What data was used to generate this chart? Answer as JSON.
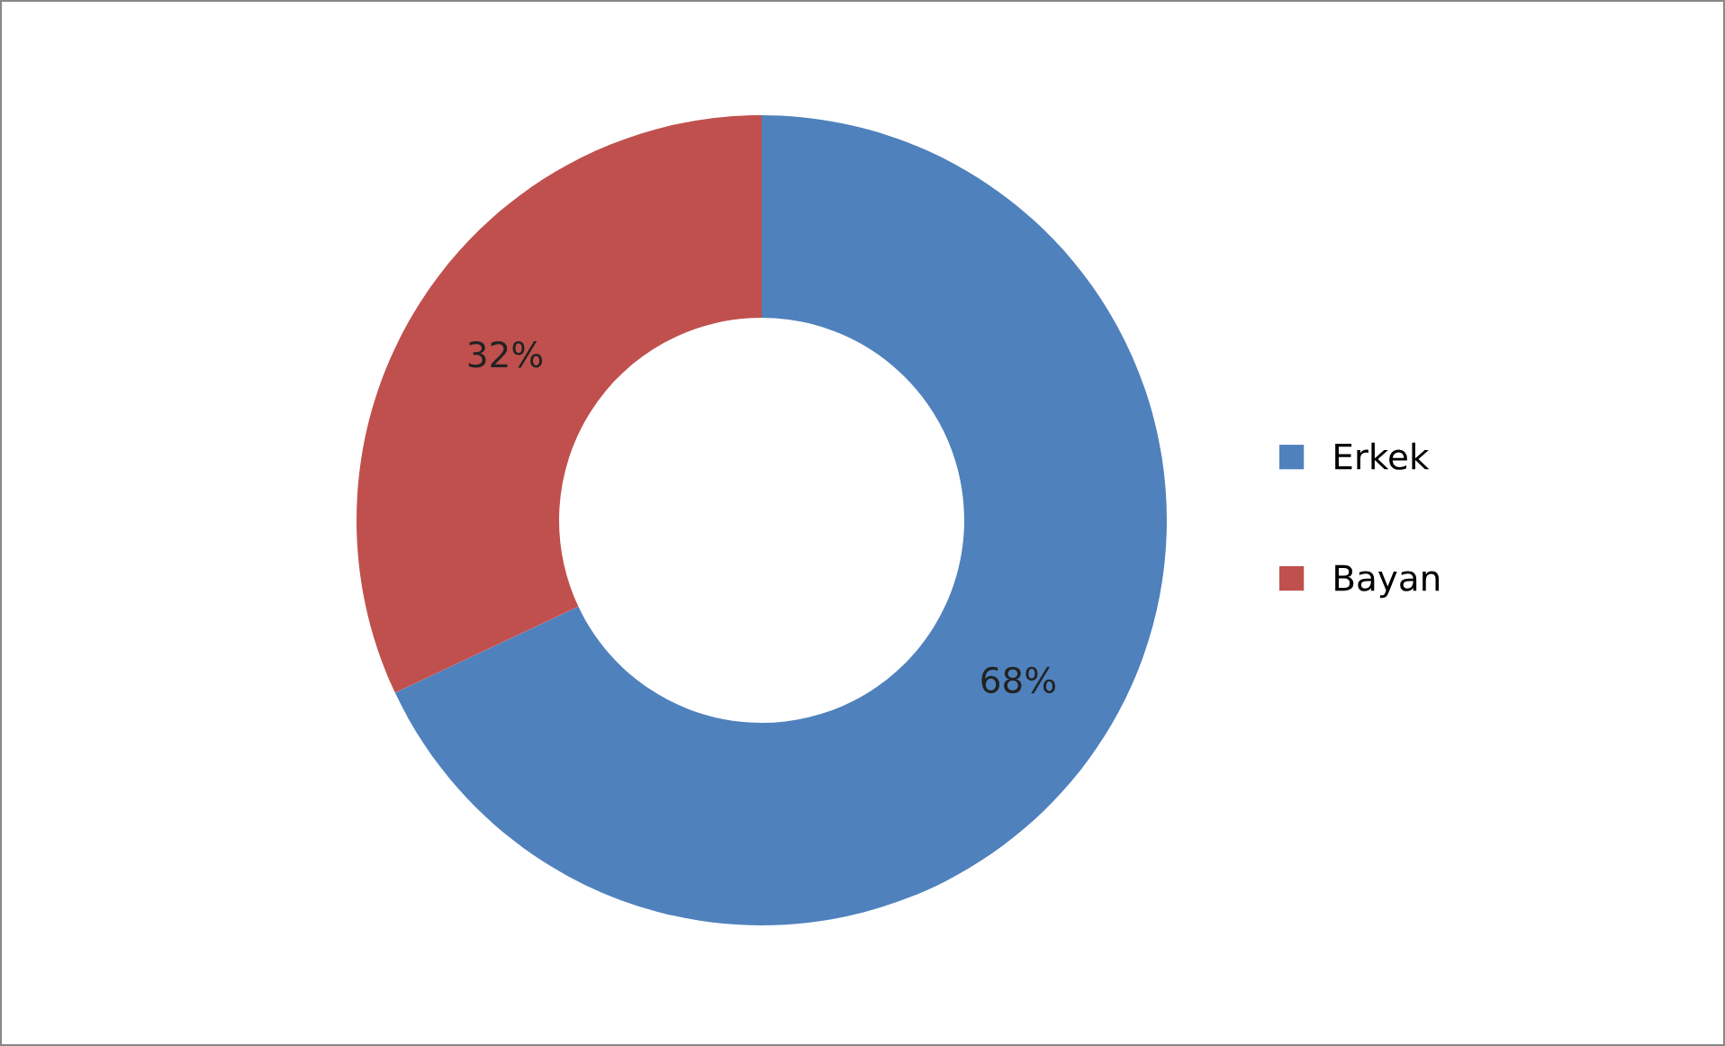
{
  "chart_data": {
    "type": "donut",
    "categories": [
      "Erkek",
      "Bayan"
    ],
    "values": [
      68,
      32
    ],
    "colors": [
      "#4f81bd",
      "#c0504d"
    ],
    "value_labels": [
      "68%",
      "32%"
    ],
    "legend": "right"
  }
}
